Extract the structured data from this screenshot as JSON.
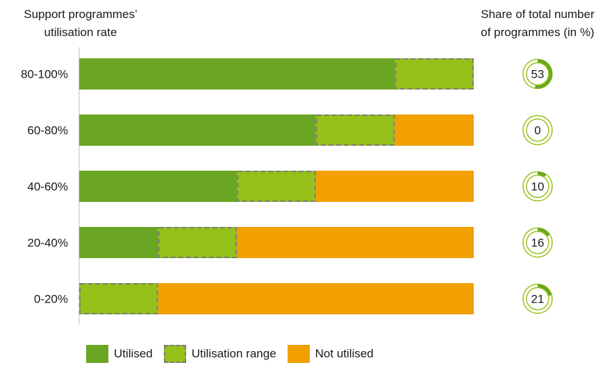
{
  "chart_data": {
    "type": "bar",
    "orientation": "horizontal",
    "stacked": true,
    "ylabel": "Support programmes’ utilisation rate",
    "categories": [
      "80-100%",
      "60-80%",
      "40-60%",
      "20-40%",
      "0-20%"
    ],
    "series": [
      {
        "name": "Utilised",
        "values": [
          80,
          60,
          40,
          20,
          0
        ]
      },
      {
        "name": "Utilisation range",
        "values": [
          20,
          20,
          20,
          20,
          20
        ]
      },
      {
        "name": "Not utilised",
        "values": [
          0,
          20,
          40,
          60,
          80
        ]
      }
    ],
    "xlim": [
      0,
      100
    ],
    "grid": false,
    "legend_position": "bottom",
    "share": {
      "title": "Share of total number of programmes (in %)",
      "values": [
        53,
        0,
        10,
        16,
        21
      ]
    }
  },
  "colors": {
    "utilised": "#6aa623",
    "range": "#96c11a",
    "not_utilised": "#f1a000",
    "dash": "#7a7a7a",
    "ring": "#96c11a",
    "ring_fill": "#6aa623"
  },
  "legend": [
    "Utilised",
    "Utilisation range",
    "Not utilised"
  ]
}
